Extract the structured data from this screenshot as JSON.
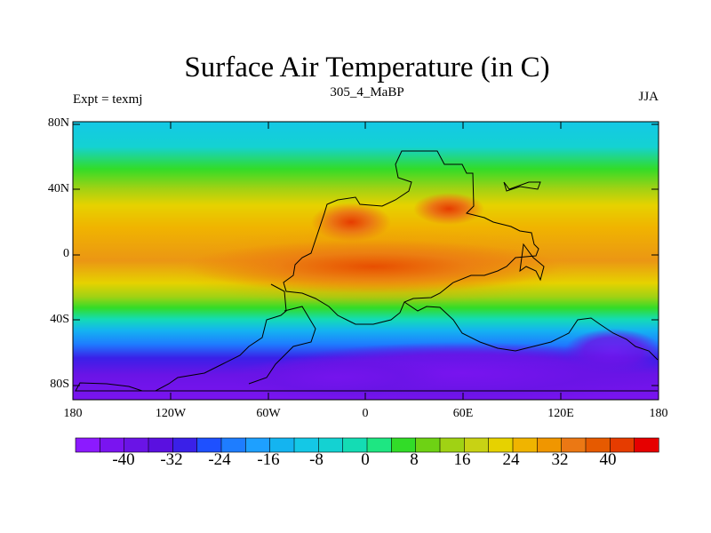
{
  "map": {
    "title": "Surface Air Temperature (in C)",
    "subtitle": "305_4_MaBP",
    "left_label": "Expt = texmj",
    "right_label": "JJA",
    "units": "C"
  },
  "lat_ticks": [
    "80N",
    "40N",
    "0",
    "40S",
    "80S"
  ],
  "lon_ticks": [
    "180",
    "120W",
    "60W",
    "0",
    "60E",
    "120E",
    "180"
  ],
  "colorbar": {
    "labels": [
      "-40",
      "-32",
      "-24",
      "-16",
      "-8",
      "0",
      "8",
      "16",
      "24",
      "32",
      "40"
    ],
    "colors": [
      "#8c1aff",
      "#7a14f0",
      "#6a14e6",
      "#5a10e0",
      "#3a20e8",
      "#1e50ff",
      "#1e7dff",
      "#1ea0ff",
      "#14b4f0",
      "#14c8e6",
      "#14d2d2",
      "#14dcb4",
      "#1ee682",
      "#32dc28",
      "#6ed214",
      "#a0d214",
      "#c8d214",
      "#e6d200",
      "#f0b400",
      "#f09600",
      "#eb7814",
      "#e65a00",
      "#e63c00",
      "#e60000"
    ]
  },
  "colors": {
    "coastline": "#000000",
    "frame": "#000000"
  }
}
